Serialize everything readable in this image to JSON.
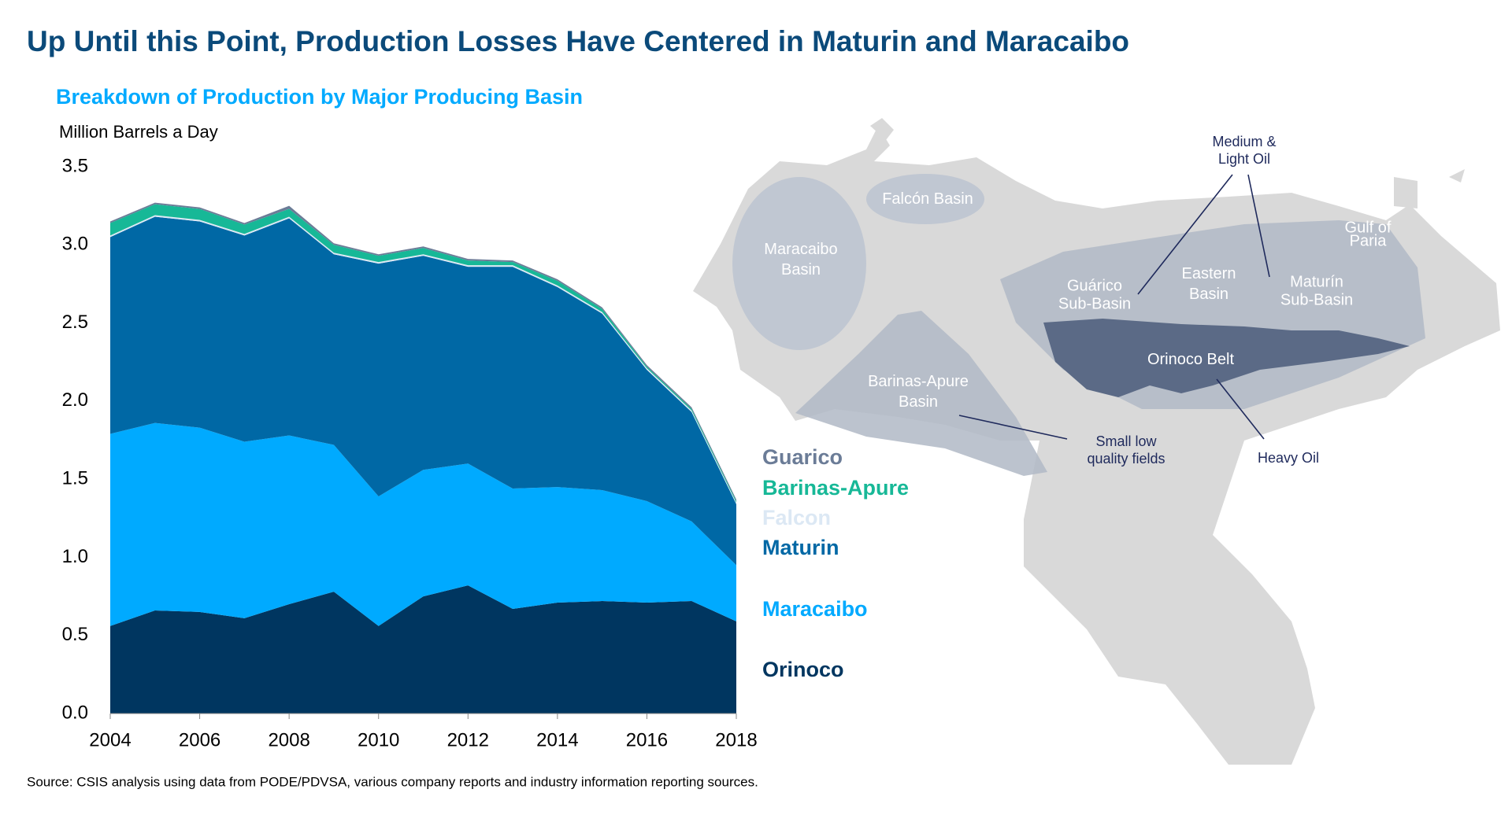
{
  "header": {
    "title": "Up Until this Point, Production Losses Have Centered in Maturin and Maracaibo"
  },
  "chart_data": {
    "type": "stacked-area",
    "title": "Breakdown of Production by Major Producing Basin",
    "y_label": "Million Barrels a Day",
    "x": [
      2004,
      2005,
      2006,
      2007,
      2008,
      2009,
      2010,
      2011,
      2012,
      2013,
      2014,
      2015,
      2016,
      2017,
      2018
    ],
    "xlim": [
      2004,
      2018
    ],
    "xticks": [
      2004,
      2006,
      2008,
      2010,
      2012,
      2014,
      2016,
      2018
    ],
    "ylim": [
      0,
      3.5
    ],
    "yticks": [
      {
        "value": 0,
        "label": "0.0"
      },
      0.5,
      {
        "value": 1,
        "label": "1.0"
      },
      1.5,
      {
        "value": 2,
        "label": "2.0"
      },
      2.5,
      {
        "value": 3,
        "label": "3.0"
      },
      3.5
    ],
    "series": [
      {
        "name": "Orinoco",
        "color": "#003660",
        "values": [
          0.56,
          0.66,
          0.65,
          0.61,
          0.7,
          0.78,
          0.56,
          0.75,
          0.82,
          0.67,
          0.71,
          0.72,
          0.71,
          0.72,
          0.59
        ]
      },
      {
        "name": "Maracaibo",
        "color": "#00aaff",
        "values": [
          1.23,
          1.2,
          1.18,
          1.13,
          1.08,
          0.94,
          0.83,
          0.81,
          0.78,
          0.77,
          0.74,
          0.71,
          0.65,
          0.51,
          0.36
        ]
      },
      {
        "name": "Maturin",
        "color": "#0068a5",
        "values": [
          1.26,
          1.32,
          1.32,
          1.32,
          1.39,
          1.22,
          1.49,
          1.37,
          1.26,
          1.42,
          1.28,
          1.13,
          0.84,
          0.7,
          0.39
        ]
      },
      {
        "name": "Falcon",
        "color": "#dce8f4",
        "values": [
          0.01,
          0.01,
          0.01,
          0.01,
          0.01,
          0.01,
          0.01,
          0.01,
          0.01,
          0.01,
          0.01,
          0.01,
          0.01,
          0.01,
          0.01
        ]
      },
      {
        "name": "Barinas-Apure",
        "color": "#17b897",
        "values": [
          0.08,
          0.07,
          0.07,
          0.06,
          0.05,
          0.05,
          0.04,
          0.04,
          0.03,
          0.02,
          0.03,
          0.02,
          0.01,
          0.01,
          0.01
        ]
      },
      {
        "name": "Guarico",
        "color": "#6b7c97",
        "values": [
          0.01,
          0.01,
          0.01,
          0.01,
          0.02,
          0.01,
          0.01,
          0.01,
          0.01,
          0.01,
          0.01,
          0.01,
          0.01,
          0.01,
          0.01
        ]
      }
    ]
  },
  "map": {
    "labels": [
      "Falcón Basin",
      "Maracaibo Basin",
      "Guárico Sub-Basin",
      "Eastern Basin",
      "Maturín Sub-Basin",
      "Gulf of Paria",
      "Orinoco Belt",
      "Barinas-Apure Basin"
    ],
    "notes": [
      "Medium & Light Oil",
      "Small low quality fields",
      "Heavy Oil"
    ]
  },
  "source": "Source: CSIS analysis using data from PODE/PDVSA, various company reports and industry information reporting sources."
}
